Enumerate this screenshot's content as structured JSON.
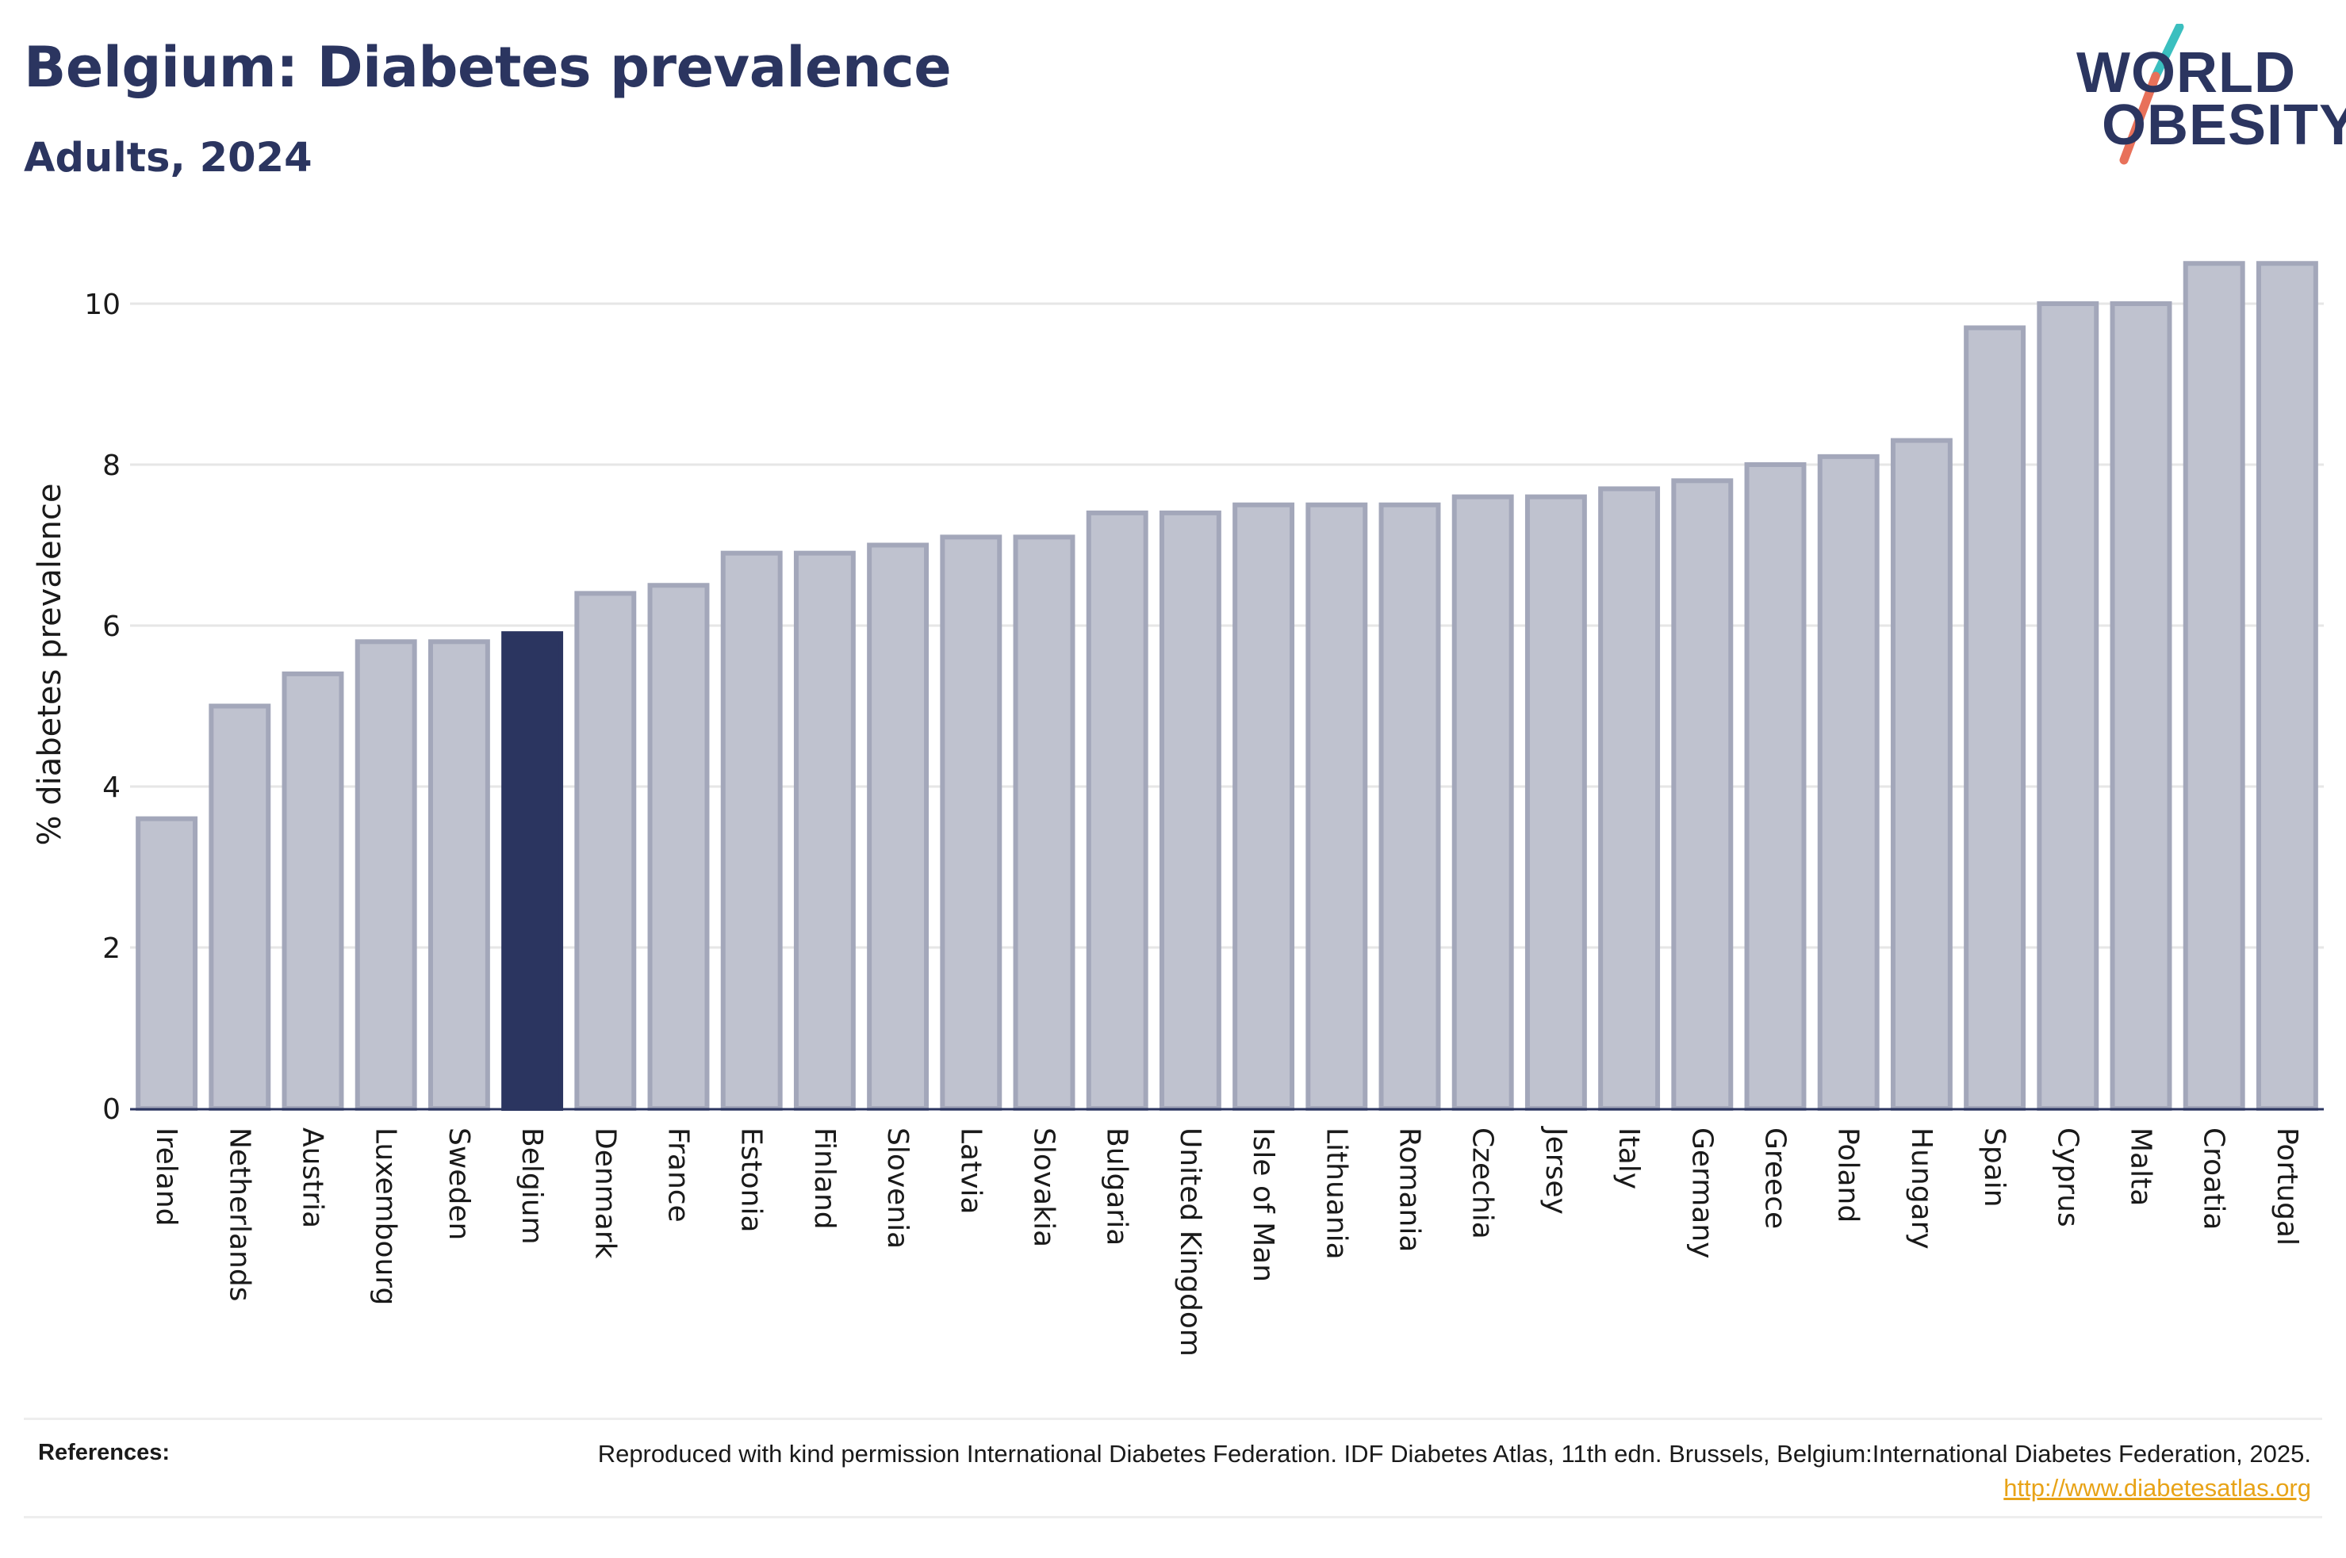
{
  "title": "Belgium: Diabetes prevalence",
  "subtitle": "Adults, 2024",
  "logo": {
    "line1": "WORLD",
    "line2": "OBESITY"
  },
  "references": {
    "label": "References:",
    "text": "Reproduced with kind permission International Diabetes Federation. IDF Diabetes Atlas, 11th edn. Brussels, Belgium:International Diabetes Federation, 2025.",
    "link": "http://www.diabetesatlas.org"
  },
  "colors": {
    "highlight": "#2b3560",
    "bar": "#bfc2cf",
    "bar_outline": "#a3a7ba",
    "title": "#2b3560",
    "link": "#e8a317",
    "logo_slash_top": "#3bbfbf",
    "logo_slash_bottom": "#e8715a"
  },
  "chart_data": {
    "type": "bar",
    "title": "Belgium: Diabetes prevalence",
    "subtitle": "Adults, 2024",
    "xlabel": "",
    "ylabel": "% diabetes prevalence",
    "ylim": [
      0,
      10.9
    ],
    "yticks": [
      0,
      2,
      4,
      6,
      8,
      10
    ],
    "grid": true,
    "highlight": "Belgium",
    "categories": [
      "Ireland",
      "Netherlands",
      "Austria",
      "Luxembourg",
      "Sweden",
      "Belgium",
      "Denmark",
      "France",
      "Estonia",
      "Finland",
      "Slovenia",
      "Latvia",
      "Slovakia",
      "Bulgaria",
      "United Kingdom",
      "Isle of Man",
      "Lithuania",
      "Romania",
      "Czechia",
      "Jersey",
      "Italy",
      "Germany",
      "Greece",
      "Poland",
      "Hungary",
      "Spain",
      "Cyprus",
      "Malta",
      "Croatia",
      "Portugal"
    ],
    "values": [
      3.6,
      5.0,
      5.4,
      5.8,
      5.8,
      5.9,
      6.4,
      6.5,
      6.9,
      6.9,
      7.0,
      7.1,
      7.1,
      7.4,
      7.4,
      7.5,
      7.5,
      7.5,
      7.6,
      7.6,
      7.7,
      7.8,
      8.0,
      8.1,
      8.3,
      9.7,
      10.0,
      10.0,
      10.5,
      10.5
    ]
  }
}
